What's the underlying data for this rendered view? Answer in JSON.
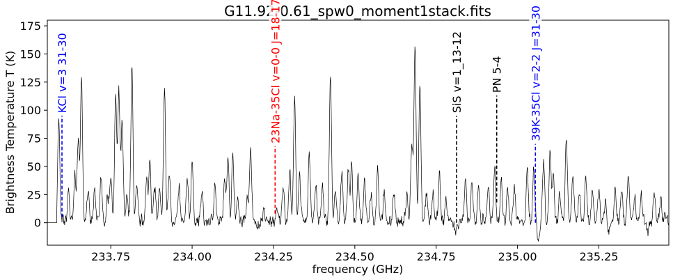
{
  "chart_data": {
    "type": "line",
    "title": "G11.92-0.61_spw0_moment1stack.fits",
    "xlabel": "frequency (GHz)",
    "ylabel": "Brightness Temperature T (K)",
    "xlim": [
      233.555,
      235.465
    ],
    "ylim": [
      -20,
      180
    ],
    "xticks": [
      "233.75",
      "234.00",
      "234.25",
      "234.50",
      "234.75",
      "235.00",
      "235.25"
    ],
    "yticks": [
      "0",
      "25",
      "50",
      "75",
      "100",
      "125",
      "150",
      "175"
    ],
    "grid": false,
    "spectrum_peaks": [
      {
        "x": 233.59,
        "y": 92
      },
      {
        "x": 233.62,
        "y": 28
      },
      {
        "x": 233.64,
        "y": 40
      },
      {
        "x": 233.65,
        "y": 73
      },
      {
        "x": 233.66,
        "y": 129
      },
      {
        "x": 233.68,
        "y": 28
      },
      {
        "x": 233.7,
        "y": 27
      },
      {
        "x": 233.72,
        "y": 40
      },
      {
        "x": 233.74,
        "y": 22
      },
      {
        "x": 233.75,
        "y": 42
      },
      {
        "x": 233.765,
        "y": 113
      },
      {
        "x": 233.775,
        "y": 114
      },
      {
        "x": 233.785,
        "y": 88
      },
      {
        "x": 233.8,
        "y": 25
      },
      {
        "x": 233.815,
        "y": 136
      },
      {
        "x": 233.83,
        "y": 32
      },
      {
        "x": 233.86,
        "y": 38
      },
      {
        "x": 233.87,
        "y": 57
      },
      {
        "x": 233.885,
        "y": 31
      },
      {
        "x": 233.9,
        "y": 28
      },
      {
        "x": 233.915,
        "y": 117
      },
      {
        "x": 233.93,
        "y": 45
      },
      {
        "x": 233.96,
        "y": 30
      },
      {
        "x": 233.985,
        "y": 38
      },
      {
        "x": 234.0,
        "y": 55
      },
      {
        "x": 234.03,
        "y": 27
      },
      {
        "x": 234.07,
        "y": 35
      },
      {
        "x": 234.1,
        "y": 37
      },
      {
        "x": 234.11,
        "y": 60
      },
      {
        "x": 234.125,
        "y": 60
      },
      {
        "x": 234.14,
        "y": 22
      },
      {
        "x": 234.17,
        "y": 24
      },
      {
        "x": 234.18,
        "y": 65
      },
      {
        "x": 234.22,
        "y": 10
      },
      {
        "x": 234.26,
        "y": 10
      },
      {
        "x": 234.28,
        "y": 34
      },
      {
        "x": 234.3,
        "y": 43
      },
      {
        "x": 234.315,
        "y": 111
      },
      {
        "x": 234.33,
        "y": 42
      },
      {
        "x": 234.36,
        "y": 62
      },
      {
        "x": 234.38,
        "y": 33
      },
      {
        "x": 234.4,
        "y": 32
      },
      {
        "x": 234.425,
        "y": 132
      },
      {
        "x": 234.44,
        "y": 25
      },
      {
        "x": 234.46,
        "y": 47
      },
      {
        "x": 234.48,
        "y": 45
      },
      {
        "x": 234.49,
        "y": 50
      },
      {
        "x": 234.51,
        "y": 39
      },
      {
        "x": 234.53,
        "y": 38
      },
      {
        "x": 234.55,
        "y": 25
      },
      {
        "x": 234.57,
        "y": 48
      },
      {
        "x": 234.59,
        "y": 25
      },
      {
        "x": 234.62,
        "y": 27
      },
      {
        "x": 234.66,
        "y": 24
      },
      {
        "x": 234.675,
        "y": 69
      },
      {
        "x": 234.685,
        "y": 156
      },
      {
        "x": 234.7,
        "y": 123
      },
      {
        "x": 234.72,
        "y": 23
      },
      {
        "x": 234.74,
        "y": 26
      },
      {
        "x": 234.76,
        "y": 40
      },
      {
        "x": 234.78,
        "y": 20
      },
      {
        "x": 234.84,
        "y": 37
      },
      {
        "x": 234.86,
        "y": 31
      },
      {
        "x": 234.88,
        "y": 32
      },
      {
        "x": 234.91,
        "y": 33
      },
      {
        "x": 234.93,
        "y": 48
      },
      {
        "x": 234.95,
        "y": 38
      },
      {
        "x": 234.97,
        "y": 29
      },
      {
        "x": 234.99,
        "y": 32
      },
      {
        "x": 235.03,
        "y": 45
      },
      {
        "x": 235.05,
        "y": 48
      },
      {
        "x": 235.08,
        "y": 56
      },
      {
        "x": 235.1,
        "y": 60
      },
      {
        "x": 235.11,
        "y": 42
      },
      {
        "x": 235.13,
        "y": 27
      },
      {
        "x": 235.15,
        "y": 76
      },
      {
        "x": 235.17,
        "y": 41
      },
      {
        "x": 235.19,
        "y": 26
      },
      {
        "x": 235.21,
        "y": 36
      },
      {
        "x": 235.23,
        "y": 27
      },
      {
        "x": 235.25,
        "y": 29
      },
      {
        "x": 235.27,
        "y": 20
      },
      {
        "x": 235.3,
        "y": 32
      },
      {
        "x": 235.32,
        "y": 30
      },
      {
        "x": 235.34,
        "y": 42
      },
      {
        "x": 235.36,
        "y": 23
      },
      {
        "x": 235.38,
        "y": 22
      },
      {
        "x": 235.42,
        "y": 24
      },
      {
        "x": 235.44,
        "y": 22
      },
      {
        "x": 235.455,
        "y": 5
      }
    ],
    "spectrum_dips": [
      {
        "x": 234.81,
        "y": -8
      },
      {
        "x": 235.065,
        "y": -16
      },
      {
        "x": 235.28,
        "y": -10
      },
      {
        "x": 235.4,
        "y": -8
      },
      {
        "x": 234.2,
        "y": -6
      }
    ],
    "line_markers": [
      {
        "label": "KCl v=3 31-30",
        "x": 233.6,
        "y_bottom": 5,
        "y_top": 95,
        "color": "#0000ff"
      },
      {
        "label": "23Na-35Cl v=0-0 J=18-17",
        "x": 234.255,
        "y_bottom": 8,
        "y_top": 68,
        "color": "#ff0000"
      },
      {
        "label": "SiS v=1_13-12",
        "x": 234.813,
        "y_bottom": 0,
        "y_top": 95,
        "color": "#000000"
      },
      {
        "label": "PN 5-4",
        "x": 234.936,
        "y_bottom": 18,
        "y_top": 113,
        "color": "#000000"
      },
      {
        "label": "39K-35Cl v=2-2 J=31-30",
        "x": 235.055,
        "y_bottom": 0,
        "y_top": 70,
        "color": "#0000ff"
      }
    ]
  }
}
